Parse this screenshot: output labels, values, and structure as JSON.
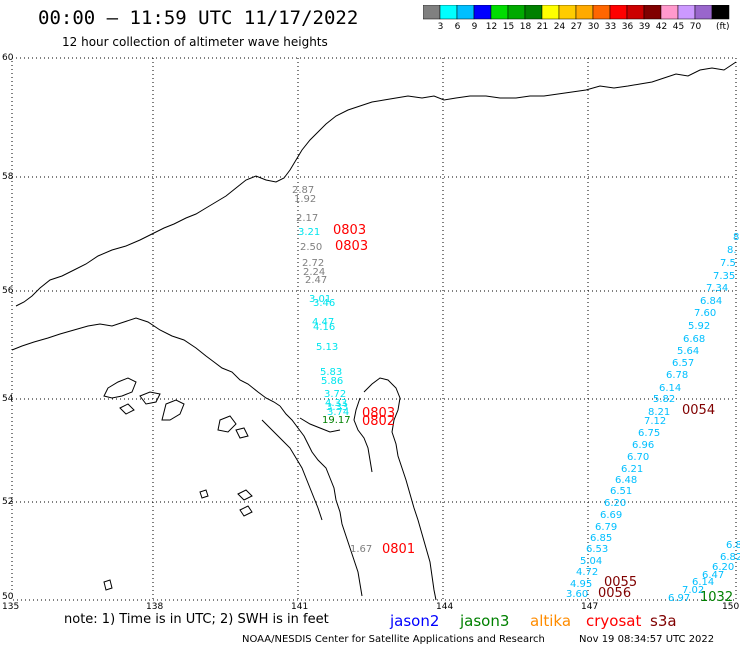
{
  "header": {
    "title": "00:00 – 11:59 UTC 11/17/2022",
    "subtitle": "12 hour collection of altimeter wave heights"
  },
  "colorbar": {
    "colors": [
      "#808080",
      "#00ffff",
      "#00bfff",
      "#0000ff",
      "#00dd00",
      "#00aa00",
      "#008000",
      "#ffff00",
      "#ffcc00",
      "#ffaa00",
      "#ff6600",
      "#ff0000",
      "#cc0000",
      "#800000",
      "#ff99cc",
      "#cc99ff",
      "#9966cc",
      "#000000"
    ],
    "labels": [
      "3",
      "6",
      "9",
      "12",
      "15",
      "18",
      "21",
      "24",
      "27",
      "30",
      "33",
      "36",
      "39",
      "42",
      "45",
      "70"
    ],
    "unit": "(ft)"
  },
  "axes": {
    "lat_labels": [
      "60",
      "58",
      "56",
      "54",
      "52",
      "50"
    ],
    "lon_labels": [
      "135",
      "138",
      "141",
      "144",
      "147",
      "150"
    ]
  },
  "observations": [
    {
      "text": "2.87",
      "color": "#808080"
    },
    {
      "text": "1.92",
      "color": "#808080"
    },
    {
      "text": "2.17",
      "color": "#808080"
    },
    {
      "text": "3.21",
      "color": "#00e5ee"
    },
    {
      "text": "0803",
      "color": "#ff0000"
    },
    {
      "text": "2.50",
      "color": "#808080"
    },
    {
      "text": "0803",
      "color": "#ff0000"
    },
    {
      "text": "2.72",
      "color": "#808080"
    },
    {
      "text": "2.24",
      "color": "#808080"
    },
    {
      "text": "2.47",
      "color": "#808080"
    },
    {
      "text": "3.01",
      "color": "#00e5ee"
    },
    {
      "text": "3.46",
      "color": "#00e5ee"
    },
    {
      "text": "4.47",
      "color": "#00e5ee"
    },
    {
      "text": "4.16",
      "color": "#00e5ee"
    },
    {
      "text": "5.13",
      "color": "#00e5ee"
    },
    {
      "text": "5.83",
      "color": "#00e5ee"
    },
    {
      "text": "5.86",
      "color": "#00e5ee"
    },
    {
      "text": "3.72",
      "color": "#00e5ee"
    },
    {
      "text": "4.33",
      "color": "#00e5ee"
    },
    {
      "text": "3.33",
      "color": "#00e5ee"
    },
    {
      "text": "3.74",
      "color": "#00e5ee"
    },
    {
      "text": "19.17",
      "color": "#008000"
    },
    {
      "text": "0803",
      "color": "#ff0000"
    },
    {
      "text": "0802",
      "color": "#ff0000"
    },
    {
      "text": "1.67",
      "color": "#808080"
    },
    {
      "text": "0801",
      "color": "#ff0000"
    },
    {
      "text": "8",
      "color": "#00bfff"
    },
    {
      "text": "8.",
      "color": "#00bfff"
    },
    {
      "text": "7.5",
      "color": "#00bfff"
    },
    {
      "text": "7.35",
      "color": "#00bfff"
    },
    {
      "text": "7.34",
      "color": "#00bfff"
    },
    {
      "text": "6.84",
      "color": "#00bfff"
    },
    {
      "text": "7.60",
      "color": "#00bfff"
    },
    {
      "text": "5.92",
      "color": "#00bfff"
    },
    {
      "text": "6.68",
      "color": "#00bfff"
    },
    {
      "text": "5.64",
      "color": "#00bfff"
    },
    {
      "text": "6.57",
      "color": "#00bfff"
    },
    {
      "text": "6.78",
      "color": "#00bfff"
    },
    {
      "text": "6.14",
      "color": "#00bfff"
    },
    {
      "text": "5.82",
      "color": "#00bfff"
    },
    {
      "text": "8.21",
      "color": "#00bfff"
    },
    {
      "text": "0054",
      "color": "#800000"
    },
    {
      "text": "7.12",
      "color": "#00bfff"
    },
    {
      "text": "6.75",
      "color": "#00bfff"
    },
    {
      "text": "6.96",
      "color": "#00bfff"
    },
    {
      "text": "6.70",
      "color": "#00bfff"
    },
    {
      "text": "6.21",
      "color": "#00bfff"
    },
    {
      "text": "6.48",
      "color": "#00bfff"
    },
    {
      "text": "6.51",
      "color": "#00bfff"
    },
    {
      "text": "6.20",
      "color": "#00bfff"
    },
    {
      "text": "6.69",
      "color": "#00bfff"
    },
    {
      "text": "6.79",
      "color": "#00bfff"
    },
    {
      "text": "6.85",
      "color": "#00bfff"
    },
    {
      "text": "6.53",
      "color": "#00bfff"
    },
    {
      "text": "5.04",
      "color": "#00bfff"
    },
    {
      "text": "4.72",
      "color": "#00bfff"
    },
    {
      "text": "4.95",
      "color": "#00bfff"
    },
    {
      "text": "3.60",
      "color": "#00bfff"
    },
    {
      "text": "0055",
      "color": "#800000"
    },
    {
      "text": "0056",
      "color": "#800000"
    },
    {
      "text": "6.8",
      "color": "#00bfff"
    },
    {
      "text": "6.82",
      "color": "#00bfff"
    },
    {
      "text": "6.20",
      "color": "#00bfff"
    },
    {
      "text": "6.47",
      "color": "#00bfff"
    },
    {
      "text": "6.14",
      "color": "#00bfff"
    },
    {
      "text": "7.02",
      "color": "#00bfff"
    },
    {
      "text": "6.97",
      "color": "#00bfff"
    },
    {
      "text": "1032",
      "color": "#008000"
    }
  ],
  "notes": {
    "note": "note: 1) Time is in UTC; 2) SWH is in feet",
    "satellites": [
      {
        "name": "jason2",
        "color": "#0000ff"
      },
      {
        "name": "jason3",
        "color": "#008000"
      },
      {
        "name": "altika",
        "color": "#ff8c00"
      },
      {
        "name": "cryosat",
        "color": "#ff0000"
      },
      {
        "name": "s3a",
        "color": "#800000"
      }
    ]
  },
  "footer": {
    "credit": "NOAA/NESDIS Center for Satellite Applications and Research",
    "timestamp": "Nov 19 08:34:57 UTC 2022"
  }
}
